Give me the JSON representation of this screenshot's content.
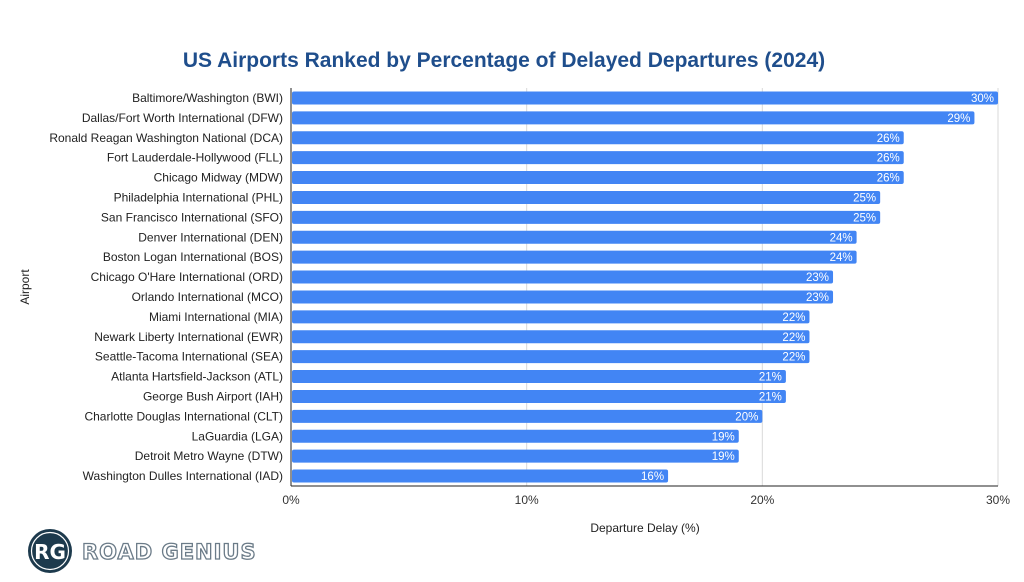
{
  "chart_data": {
    "type": "bar",
    "orientation": "horizontal",
    "title": "US Airports Ranked by Percentage of Delayed Departures (2024)",
    "xlabel": "Departure Delay (%)",
    "ylabel": "Airport",
    "xlim": [
      0,
      30
    ],
    "xticks": [
      0,
      10,
      20,
      30
    ],
    "xtick_labels": [
      "0%",
      "10%",
      "20%",
      "30%"
    ],
    "grid": true,
    "bar_color": "#4285f4",
    "categories": [
      "Baltimore/Washington (BWI)",
      "Dallas/Fort Worth International (DFW)",
      "Ronald Reagan Washington National (DCA)",
      "Fort Lauderdale-Hollywood (FLL)",
      "Chicago Midway (MDW)",
      "Philadelphia International (PHL)",
      "San Francisco International (SFO)",
      "Denver International (DEN)",
      "Boston Logan International (BOS)",
      "Chicago O'Hare International (ORD)",
      "Orlando International (MCO)",
      "Miami International (MIA)",
      "Newark Liberty International (EWR)",
      "Seattle-Tacoma International (SEA)",
      "Atlanta Hartsfield-Jackson (ATL)",
      "George Bush Airport (IAH)",
      "Charlotte Douglas International (CLT)",
      "LaGuardia (LGA)",
      "Detroit Metro Wayne (DTW)",
      "Washington Dulles International (IAD)"
    ],
    "values": [
      30,
      29,
      26,
      26,
      26,
      25,
      25,
      24,
      24,
      23,
      23,
      22,
      22,
      22,
      21,
      21,
      20,
      19,
      19,
      16
    ],
    "data_labels": [
      "30%",
      "29%",
      "26%",
      "26%",
      "26%",
      "25%",
      "25%",
      "24%",
      "24%",
      "23%",
      "23%",
      "22%",
      "22%",
      "22%",
      "21%",
      "21%",
      "20%",
      "19%",
      "19%",
      "16%"
    ]
  },
  "logo": {
    "initials": "RG",
    "name": "ROAD GENIUS"
  }
}
